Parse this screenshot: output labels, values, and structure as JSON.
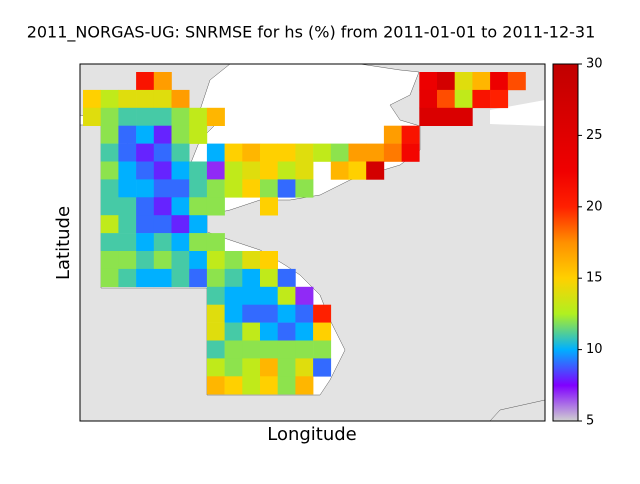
{
  "chart_data": {
    "type": "heatmap",
    "title": "2011_NORGAS-UG: SNRMSE for hs (%) from 2011-01-01 to 2011-12-31",
    "x_label": "Longitude",
    "y_label": "Latitude",
    "z": [
      [
        null,
        null,
        null,
        21,
        17,
        null,
        null,
        null,
        null,
        null,
        null,
        null,
        null,
        null,
        null,
        null,
        null,
        null,
        null,
        23,
        27,
        14,
        16,
        23,
        19
      ],
      [
        15,
        13,
        14,
        14,
        14,
        17,
        null,
        null,
        null,
        null,
        null,
        null,
        null,
        null,
        null,
        null,
        null,
        null,
        null,
        24,
        19,
        13,
        21,
        20,
        null
      ],
      [
        14,
        12,
        11,
        11,
        11,
        12,
        13,
        16,
        null,
        null,
        null,
        null,
        null,
        null,
        null,
        null,
        null,
        null,
        null,
        26,
        26,
        26,
        null,
        null,
        null
      ],
      [
        null,
        12,
        9,
        10,
        8,
        12,
        13,
        null,
        null,
        null,
        null,
        null,
        null,
        null,
        null,
        null,
        null,
        17,
        21,
        null,
        null,
        null,
        null,
        null,
        null
      ],
      [
        null,
        11,
        9,
        8,
        9,
        11,
        null,
        10,
        15,
        16,
        15,
        15,
        14,
        13,
        12,
        17,
        17,
        18,
        22,
        null,
        null,
        null,
        null,
        null,
        null
      ],
      [
        null,
        12,
        10,
        9,
        8,
        10,
        11,
        7,
        13,
        14,
        15,
        13,
        14,
        null,
        16,
        15,
        27,
        null,
        null,
        null,
        null,
        null,
        null,
        null,
        null
      ],
      [
        null,
        11,
        10,
        10,
        9,
        9,
        11,
        12,
        13,
        15,
        12,
        9,
        12,
        null,
        null,
        null,
        null,
        null,
        null,
        null,
        null,
        null,
        null,
        null,
        null
      ],
      [
        null,
        11,
        11,
        9,
        8,
        10,
        12,
        12,
        null,
        null,
        15,
        null,
        null,
        null,
        null,
        null,
        null,
        null,
        null,
        null,
        null,
        null,
        null,
        null,
        null
      ],
      [
        null,
        13,
        11,
        9,
        9,
        8,
        10,
        null,
        null,
        null,
        null,
        null,
        null,
        null,
        null,
        null,
        null,
        null,
        null,
        null,
        null,
        null,
        null,
        null,
        null
      ],
      [
        null,
        11,
        11,
        10,
        11,
        10,
        12,
        12,
        null,
        null,
        null,
        null,
        null,
        null,
        null,
        null,
        null,
        null,
        null,
        null,
        null,
        null,
        null,
        null,
        null
      ],
      [
        null,
        12,
        12,
        11,
        12,
        11,
        10,
        13,
        12,
        14,
        15,
        null,
        null,
        null,
        null,
        null,
        null,
        null,
        null,
        null,
        null,
        null,
        null,
        null,
        null
      ],
      [
        null,
        12,
        11,
        10,
        10,
        11,
        9,
        12,
        11,
        10,
        13,
        9,
        null,
        null,
        null,
        null,
        null,
        null,
        null,
        null,
        null,
        null,
        null,
        null,
        null
      ],
      [
        null,
        null,
        null,
        null,
        null,
        null,
        null,
        11,
        10,
        10,
        10,
        13,
        7,
        null,
        null,
        null,
        null,
        null,
        null,
        null,
        null,
        null,
        null,
        null,
        null
      ],
      [
        null,
        null,
        null,
        null,
        null,
        null,
        null,
        14,
        10,
        9,
        9,
        10,
        9,
        20,
        null,
        null,
        null,
        null,
        null,
        null,
        null,
        null,
        null,
        null,
        null
      ],
      [
        null,
        null,
        null,
        null,
        null,
        null,
        null,
        14,
        11,
        13,
        10,
        9,
        10,
        15,
        null,
        null,
        null,
        null,
        null,
        null,
        null,
        null,
        null,
        null,
        null
      ],
      [
        null,
        null,
        null,
        null,
        null,
        null,
        null,
        11,
        12,
        12,
        12,
        12,
        12,
        12,
        null,
        null,
        null,
        null,
        null,
        null,
        null,
        null,
        null,
        null,
        null
      ],
      [
        null,
        null,
        null,
        null,
        null,
        null,
        null,
        13,
        12,
        13,
        16,
        12,
        14,
        9,
        null,
        null,
        null,
        null,
        null,
        null,
        null,
        null,
        null,
        null,
        null
      ],
      [
        null,
        null,
        null,
        null,
        null,
        null,
        null,
        16,
        15,
        13,
        15,
        12,
        16,
        null,
        null,
        null,
        null,
        null,
        null,
        null,
        null,
        null,
        null,
        null,
        null
      ]
    ],
    "zlim": [
      5,
      30
    ],
    "zticks": [
      5,
      10,
      15,
      20,
      25,
      30
    ],
    "colormap": [
      "#d0d0d0",
      "#8000ff",
      "#00b0ff",
      "#b0f020",
      "#ffd000",
      "#ff9000",
      "#ff2000",
      "#f00000",
      "#e00000",
      "#d00000",
      "#c00000"
    ]
  }
}
